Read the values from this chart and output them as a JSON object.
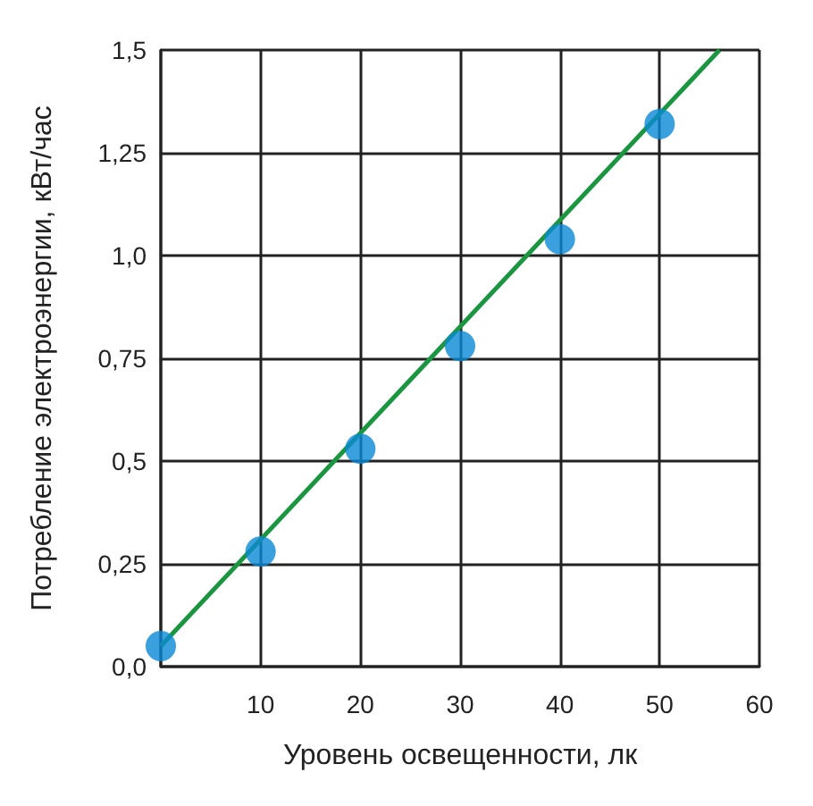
{
  "chart_data": {
    "type": "scatter",
    "xlabel": "Уровень освещенности, лк",
    "ylabel": "Потребление электроэнергии, кВт/час",
    "series": [
      {
        "color": "#0a8ad6",
        "x": [
          0,
          10,
          20,
          30,
          40,
          50
        ],
        "values": [
          0.05,
          0.28,
          0.53,
          0.78,
          1.04,
          1.32
        ],
        "marker": "circle"
      },
      {
        "type": "line",
        "color": "#1a9641",
        "x": [
          0,
          56
        ],
        "values": [
          0.05,
          1.5
        ],
        "marker": "none",
        "line_style": "solid"
      }
    ],
    "xlim": [
      0,
      60
    ],
    "xticks": [
      {
        "value": 0,
        "label": null
      },
      10,
      20,
      30,
      40,
      50,
      60
    ],
    "ylim": [
      0,
      1.5
    ],
    "yticks": [
      {
        "value": 0,
        "label": "0,0"
      },
      {
        "value": 0.25,
        "label": "0,25"
      },
      {
        "value": 0.5,
        "label": "0,5"
      },
      {
        "value": 0.75,
        "label": "0,75"
      },
      {
        "value": 1,
        "label": "1,0"
      },
      {
        "value": 1.25,
        "label": "1,25"
      },
      {
        "value": 1.5,
        "label": "1,5"
      }
    ],
    "grid": true
  }
}
